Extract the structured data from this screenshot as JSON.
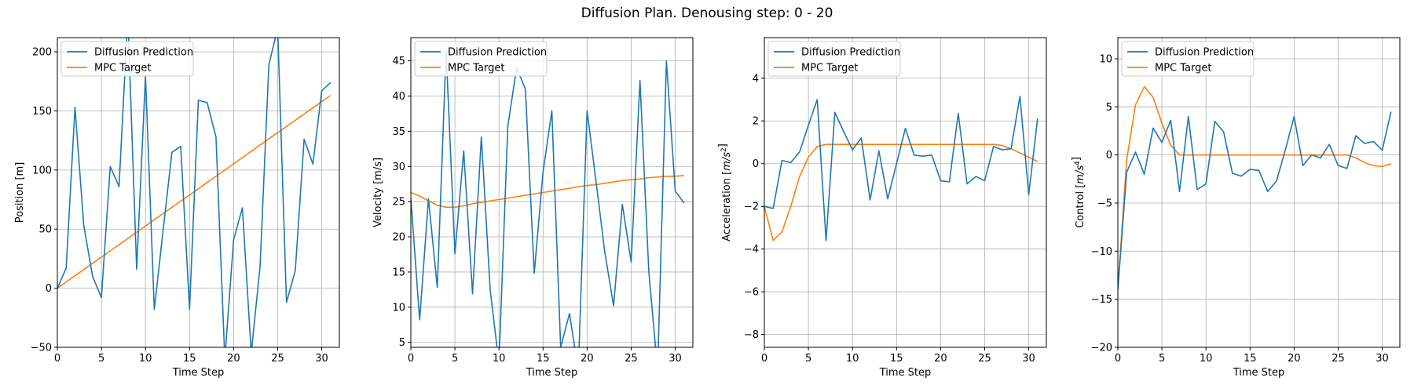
{
  "figure_title": "Diffusion Plan. Denousing step: 0 - 20",
  "colors": {
    "prediction": "#1f77b4",
    "target": "#ff7f0e",
    "grid": "#b0b0b0"
  },
  "chart_data": [
    {
      "type": "line",
      "title": "",
      "xlabel": "Time Step",
      "ylabel": "Position [m]",
      "ylabel_parts": [
        [
          "Position [m]",
          ""
        ]
      ],
      "xlim": [
        0,
        32
      ],
      "ylim": [
        -50,
        212
      ],
      "xticks": [
        0,
        5,
        10,
        15,
        20,
        25,
        30
      ],
      "yticks": [
        -50,
        0,
        50,
        100,
        150,
        200
      ],
      "grid": true,
      "legend_position": "upper-left",
      "x": [
        0,
        1,
        2,
        3,
        4,
        5,
        6,
        7,
        8,
        9,
        10,
        11,
        12,
        13,
        14,
        15,
        16,
        17,
        18,
        19,
        20,
        21,
        22,
        23,
        24,
        25,
        26,
        27,
        28,
        29,
        30,
        31
      ],
      "series": [
        {
          "name": "Diffusion Prediction",
          "color": "#1f77b4",
          "values": [
            0,
            17,
            153,
            53,
            10,
            -8,
            103,
            86,
            230,
            16,
            180,
            -18,
            49,
            115,
            120,
            -18,
            159,
            157,
            128,
            -60,
            41,
            68,
            -55,
            18,
            189,
            220,
            -12,
            15,
            126,
            105,
            167,
            174
          ]
        },
        {
          "name": "MPC Target",
          "color": "#ff7f0e",
          "values": [
            0,
            5.3,
            10.5,
            15.8,
            21.1,
            26.3,
            31.6,
            36.8,
            42.1,
            47.4,
            52.6,
            57.9,
            63.2,
            68.4,
            73.7,
            78.9,
            84.2,
            89.5,
            94.7,
            100,
            105.3,
            110.5,
            115.8,
            121.1,
            126.3,
            131.6,
            136.8,
            142.1,
            147.4,
            152.6,
            157.9,
            163
          ]
        }
      ]
    },
    {
      "type": "line",
      "title": "",
      "xlabel": "Time Step",
      "ylabel": "Velocity [m/s]",
      "ylabel_parts": [
        [
          "Velocity [m/s]",
          ""
        ]
      ],
      "xlim": [
        0,
        32
      ],
      "ylim": [
        4.3,
        48.3
      ],
      "xticks": [
        0,
        5,
        10,
        15,
        20,
        25,
        30
      ],
      "yticks": [
        5,
        10,
        15,
        20,
        25,
        30,
        35,
        40,
        45
      ],
      "grid": true,
      "legend_position": "upper-left",
      "x": [
        0,
        1,
        2,
        3,
        4,
        5,
        6,
        7,
        8,
        9,
        10,
        11,
        12,
        13,
        14,
        15,
        16,
        17,
        18,
        19,
        20,
        21,
        22,
        23,
        24,
        25,
        26,
        27,
        28,
        29,
        30,
        31
      ],
      "series": [
        {
          "name": "Diffusion Prediction",
          "color": "#1f77b4",
          "values": [
            25.5,
            8.2,
            25.4,
            12.8,
            46.5,
            17.6,
            32.2,
            11.9,
            34.2,
            12.5,
            2,
            35.7,
            44,
            41,
            14.8,
            29.2,
            37.9,
            4.3,
            9.1,
            1,
            37.9,
            28,
            17.9,
            10.2,
            24.6,
            16.4,
            42.2,
            15.1,
            1,
            45,
            26.5,
            24.8
          ]
        },
        {
          "name": "MPC Target",
          "color": "#ff7f0e",
          "values": [
            26.3,
            25.8,
            25.1,
            24.5,
            24.2,
            24.2,
            24.4,
            24.7,
            24.9,
            25.1,
            25.3,
            25.5,
            25.7,
            25.9,
            26.1,
            26.3,
            26.5,
            26.7,
            26.9,
            27.1,
            27.3,
            27.4,
            27.6,
            27.8,
            28,
            28.1,
            28.2,
            28.4,
            28.5,
            28.6,
            28.6,
            28.7
          ]
        }
      ]
    },
    {
      "type": "line",
      "title": "",
      "xlabel": "Time Step",
      "ylabel": "Acceleration [m/s²]",
      "ylabel_parts": [
        [
          "Acceleration [",
          ""
        ],
        [
          "m/s",
          "italic"
        ],
        [
          "2",
          "sup"
        ],
        [
          "]",
          ""
        ]
      ],
      "xlim": [
        0,
        32
      ],
      "ylim": [
        -8.6,
        5.9
      ],
      "xticks": [
        0,
        5,
        10,
        15,
        20,
        25,
        30
      ],
      "yticks": [
        -8,
        -6,
        -4,
        -2,
        0,
        2,
        4
      ],
      "grid": true,
      "legend_position": "upper-left",
      "x": [
        0,
        1,
        2,
        3,
        4,
        5,
        6,
        7,
        8,
        9,
        10,
        11,
        12,
        13,
        14,
        15,
        16,
        17,
        18,
        19,
        20,
        21,
        22,
        23,
        24,
        25,
        26,
        27,
        28,
        29,
        30,
        31
      ],
      "series": [
        {
          "name": "Diffusion Prediction",
          "color": "#1f77b4",
          "values": [
            -2,
            -2.1,
            0.15,
            0.05,
            0.55,
            1.8,
            3,
            -3.6,
            2.4,
            1.5,
            0.65,
            1.2,
            -1.7,
            0.6,
            -1.65,
            0,
            1.65,
            0.4,
            0.35,
            0.4,
            -0.8,
            -0.85,
            2.35,
            -0.95,
            -0.6,
            -0.8,
            0.8,
            0.65,
            0.7,
            3.15,
            -1.45,
            2.1
          ]
        },
        {
          "name": "MPC Target",
          "color": "#ff7f0e",
          "values": [
            -2,
            -3.6,
            -3.2,
            -2,
            -0.6,
            0.3,
            0.8,
            0.9,
            0.9,
            0.9,
            0.9,
            0.9,
            0.9,
            0.9,
            0.9,
            0.9,
            0.9,
            0.9,
            0.9,
            0.9,
            0.9,
            0.9,
            0.9,
            0.9,
            0.9,
            0.9,
            0.9,
            0.85,
            0.7,
            0.5,
            0.3,
            0.1
          ]
        }
      ]
    },
    {
      "type": "line",
      "title": "",
      "xlabel": "Time Step",
      "ylabel": "Control [m/s⁴]",
      "ylabel_parts": [
        [
          "Control [",
          ""
        ],
        [
          "m/s",
          "italic"
        ],
        [
          "4",
          "sup"
        ],
        [
          "]",
          ""
        ]
      ],
      "xlim": [
        0,
        32
      ],
      "ylim": [
        -20,
        12.2
      ],
      "xticks": [
        0,
        5,
        10,
        15,
        20,
        25,
        30
      ],
      "yticks": [
        -20,
        -15,
        -10,
        -5,
        0,
        5,
        10
      ],
      "grid": true,
      "legend_position": "upper-left",
      "x": [
        0,
        1,
        2,
        3,
        4,
        5,
        6,
        7,
        8,
        9,
        10,
        11,
        12,
        13,
        14,
        15,
        16,
        17,
        18,
        19,
        20,
        21,
        22,
        23,
        24,
        25,
        26,
        27,
        28,
        29,
        30,
        31
      ],
      "series": [
        {
          "name": "Diffusion Prediction",
          "color": "#1f77b4",
          "values": [
            -14,
            -1.8,
            0.3,
            -2,
            2.8,
            1.3,
            3.6,
            -3.8,
            4,
            -3.6,
            -3,
            3.5,
            2.4,
            -1.9,
            -2.2,
            -1.5,
            -1.6,
            -3.8,
            -2.7,
            0.5,
            4,
            -1.1,
            0,
            -0.3,
            1.1,
            -1.1,
            -1.4,
            2,
            1.2,
            1.4,
            0.5,
            4.5
          ]
        },
        {
          "name": "MPC Target",
          "color": "#ff7f0e",
          "values": [
            -14,
            -0.5,
            5.2,
            7.1,
            6,
            3.3,
            1,
            0,
            0,
            0,
            0,
            0,
            0,
            0,
            0,
            0,
            0,
            0,
            0,
            0,
            0,
            0,
            0,
            0,
            0,
            0,
            0,
            -0.3,
            -0.8,
            -1.1,
            -1.2,
            -0.9
          ]
        }
      ]
    }
  ]
}
